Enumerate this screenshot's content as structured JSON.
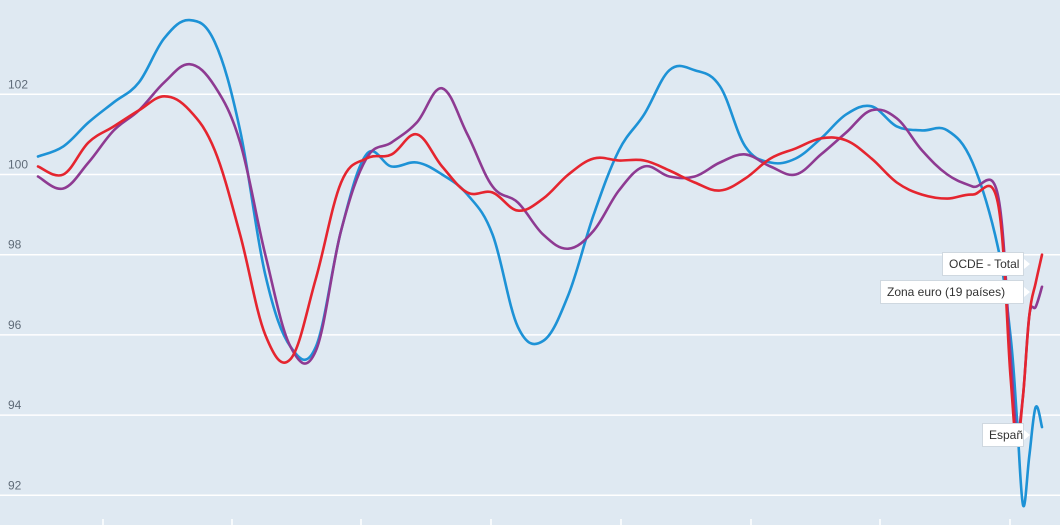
{
  "chart_data": {
    "type": "line",
    "title": "",
    "xlabel": "",
    "ylabel": "",
    "ylim": [
      91.8,
      104.0
    ],
    "yticks": [
      92,
      94,
      96,
      98,
      100,
      102
    ],
    "grid": true,
    "x": [
      0,
      2,
      4,
      6,
      8,
      10,
      12,
      14,
      16,
      18,
      20,
      22,
      24,
      26,
      28,
      30,
      32,
      34,
      36,
      38,
      40,
      42,
      44,
      46,
      48,
      50,
      52,
      54,
      56,
      58,
      60,
      62,
      64,
      66,
      68,
      70,
      72,
      74,
      76,
      77,
      77.5,
      78,
      78.5,
      79,
      79.5
    ],
    "series": [
      {
        "name": "OCDE - Total",
        "color": "#e5252f",
        "values": [
          100.2,
          100.0,
          100.8,
          101.2,
          101.6,
          101.95,
          101.6,
          100.6,
          98.5,
          96.0,
          95.4,
          97.4,
          99.8,
          100.4,
          100.5,
          101.0,
          100.2,
          99.55,
          99.55,
          99.1,
          99.4,
          100.0,
          100.4,
          100.35,
          100.35,
          100.1,
          99.8,
          99.6,
          99.9,
          100.4,
          100.65,
          100.9,
          100.85,
          100.4,
          99.8,
          99.5,
          99.4,
          99.5,
          99.3,
          95.0,
          93.3,
          94.5,
          96.5,
          97.3,
          98.0
        ]
      },
      {
        "name": "Zona euro (19 países)",
        "color": "#8e3a92",
        "values": [
          99.95,
          99.65,
          100.3,
          101.1,
          101.6,
          102.3,
          102.75,
          102.2,
          100.8,
          98.0,
          95.7,
          95.6,
          98.6,
          100.4,
          100.8,
          101.3,
          102.15,
          101.0,
          99.7,
          99.3,
          98.5,
          98.15,
          98.6,
          99.6,
          100.2,
          99.95,
          99.95,
          100.3,
          100.5,
          100.2,
          100.0,
          100.5,
          101.05,
          101.6,
          101.4,
          100.6,
          100.0,
          99.7,
          99.5,
          95.5,
          93.6,
          94.5,
          96.5,
          96.7,
          97.2
        ]
      },
      {
        "name": "España",
        "color": "#1d92d6",
        "values": [
          100.45,
          100.7,
          101.3,
          101.8,
          102.3,
          103.4,
          103.85,
          103.3,
          101.1,
          97.5,
          95.7,
          95.7,
          98.6,
          100.5,
          100.2,
          100.3,
          100.0,
          99.5,
          98.5,
          96.2,
          95.85,
          97.0,
          99.0,
          100.6,
          101.5,
          102.6,
          102.6,
          102.2,
          100.7,
          100.3,
          100.4,
          100.9,
          101.5,
          101.7,
          101.2,
          101.1,
          101.1,
          100.3,
          98.2,
          96.0,
          94.0,
          91.75,
          93.0,
          94.2,
          93.7
        ]
      }
    ],
    "tags": {
      "oecd": "OCDE - Total",
      "euro": "Zona euro (19 países)",
      "spain": "España"
    }
  }
}
